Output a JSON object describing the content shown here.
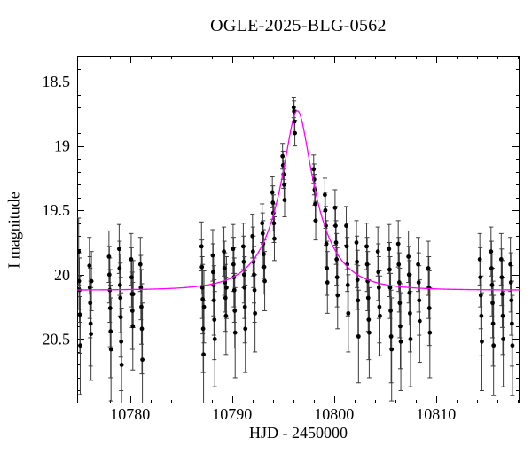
{
  "title": "OGLE-2025-BLG-0562",
  "chart_data": {
    "type": "scatter",
    "title": "OGLE-2025-BLG-0562",
    "xlabel": "HJD - 2450000",
    "ylabel": "I magnitude",
    "xlim": [
      10774.8,
      10818.2
    ],
    "ylim": [
      18.3,
      21.0
    ],
    "y_axis_inverted_magnitude": true,
    "grid": false,
    "legend": "none",
    "x_major_ticks": [
      10780,
      10790,
      10800,
      10810
    ],
    "x_major_labels": [
      "10780",
      "10790",
      "10800",
      "10810"
    ],
    "x_minor_step": 2,
    "y_major_ticks": [
      18.5,
      19,
      19.5,
      20,
      20.5
    ],
    "y_major_labels": [
      "18.5",
      "19",
      "19.5",
      "20",
      "20.5"
    ],
    "y_minor_step": 0.1,
    "colors": {
      "model_curve": "#ff00ff",
      "data_point": "#000000",
      "error_bar": "#3d3d3d",
      "axis": "#000000",
      "background": "#ffffff"
    },
    "model": {
      "name": "paczynski-microlensing",
      "t0": 10796.4,
      "tE": 3.8,
      "u0": 0.285,
      "I0": 20.12,
      "peak_mag": 18.72
    },
    "points_format": [
      "hjd_minus_2450000",
      "I_mag",
      "mag_error"
    ],
    "points": [
      [
        10774.95,
        19.82,
        0.26
      ],
      [
        10774.98,
        20.05,
        0.22
      ],
      [
        10775.02,
        20.12,
        0.25
      ],
      [
        10775.06,
        20.31,
        0.3
      ],
      [
        10775.1,
        20.55,
        0.38
      ],
      [
        10776.0,
        19.93,
        0.22
      ],
      [
        10776.04,
        20.1,
        0.24
      ],
      [
        10776.08,
        20.22,
        0.27
      ],
      [
        10776.12,
        20.38,
        0.33
      ],
      [
        10776.16,
        20.46,
        0.36
      ],
      [
        10776.2,
        20.05,
        0.23
      ],
      [
        10777.92,
        19.86,
        0.2
      ],
      [
        10777.96,
        20.0,
        0.22
      ],
      [
        10778.0,
        20.12,
        0.25
      ],
      [
        10778.04,
        20.26,
        0.3
      ],
      [
        10778.08,
        20.44,
        0.36
      ],
      [
        10778.12,
        20.58,
        0.4
      ],
      [
        10778.92,
        19.8,
        0.19
      ],
      [
        10778.96,
        19.95,
        0.21
      ],
      [
        10779.0,
        20.08,
        0.24
      ],
      [
        10779.04,
        20.18,
        0.27
      ],
      [
        10779.08,
        20.33,
        0.31
      ],
      [
        10779.12,
        20.52,
        0.38
      ],
      [
        10779.16,
        20.7,
        0.44
      ],
      [
        10780.1,
        19.88,
        0.2
      ],
      [
        10780.14,
        20.02,
        0.23
      ],
      [
        10780.18,
        20.15,
        0.26
      ],
      [
        10780.22,
        20.28,
        0.3
      ],
      [
        10780.26,
        20.4,
        0.34
      ],
      [
        10780.3,
        20.15,
        0.26
      ],
      [
        10781.0,
        19.92,
        0.21
      ],
      [
        10781.05,
        20.1,
        0.25
      ],
      [
        10781.1,
        20.25,
        0.29
      ],
      [
        10781.15,
        20.42,
        0.35
      ],
      [
        10781.2,
        20.66,
        0.44
      ],
      [
        10787.0,
        19.78,
        0.19
      ],
      [
        10787.04,
        19.94,
        0.21
      ],
      [
        10787.08,
        20.1,
        0.24
      ],
      [
        10787.12,
        20.19,
        0.27
      ],
      [
        10787.16,
        20.42,
        0.34
      ],
      [
        10787.2,
        20.62,
        0.42
      ],
      [
        10787.24,
        20.25,
        0.28
      ],
      [
        10788.1,
        19.85,
        0.2
      ],
      [
        10788.14,
        19.98,
        0.22
      ],
      [
        10788.18,
        20.08,
        0.24
      ],
      [
        10788.22,
        20.2,
        0.27
      ],
      [
        10788.26,
        20.35,
        0.31
      ],
      [
        10788.3,
        20.5,
        0.37
      ],
      [
        10789.2,
        19.82,
        0.19
      ],
      [
        10789.25,
        19.95,
        0.21
      ],
      [
        10789.3,
        20.06,
        0.23
      ],
      [
        10789.35,
        20.18,
        0.26
      ],
      [
        10789.4,
        20.32,
        0.3
      ],
      [
        10789.45,
        20.1,
        0.24
      ],
      [
        10790.1,
        19.8,
        0.19
      ],
      [
        10790.14,
        19.92,
        0.21
      ],
      [
        10790.18,
        20.02,
        0.23
      ],
      [
        10790.22,
        20.12,
        0.25
      ],
      [
        10790.26,
        20.28,
        0.29
      ],
      [
        10790.3,
        20.45,
        0.35
      ],
      [
        10791.1,
        19.78,
        0.18
      ],
      [
        10791.14,
        19.9,
        0.2
      ],
      [
        10791.18,
        20.0,
        0.22
      ],
      [
        10791.22,
        20.1,
        0.24
      ],
      [
        10791.26,
        20.25,
        0.28
      ],
      [
        10791.3,
        20.42,
        0.34
      ],
      [
        10792.0,
        19.7,
        0.17
      ],
      [
        10792.05,
        19.82,
        0.19
      ],
      [
        10792.1,
        19.9,
        0.2
      ],
      [
        10792.15,
        20.0,
        0.22
      ],
      [
        10792.2,
        20.12,
        0.25
      ],
      [
        10792.25,
        20.3,
        0.3
      ],
      [
        10792.95,
        19.6,
        0.15
      ],
      [
        10793.0,
        19.68,
        0.16
      ],
      [
        10793.05,
        19.76,
        0.18
      ],
      [
        10793.1,
        19.84,
        0.19
      ],
      [
        10793.15,
        19.94,
        0.21
      ],
      [
        10793.2,
        20.05,
        0.23
      ],
      [
        10793.95,
        19.36,
        0.12
      ],
      [
        10794.0,
        19.44,
        0.13
      ],
      [
        10794.05,
        19.52,
        0.14
      ],
      [
        10794.1,
        19.6,
        0.15
      ],
      [
        10794.15,
        19.72,
        0.17
      ],
      [
        10794.95,
        19.08,
        0.1
      ],
      [
        10795.0,
        19.15,
        0.11
      ],
      [
        10795.05,
        19.22,
        0.11
      ],
      [
        10795.1,
        19.3,
        0.12
      ],
      [
        10795.15,
        19.42,
        0.13
      ],
      [
        10796.05,
        18.7,
        0.08
      ],
      [
        10796.08,
        18.73,
        0.08
      ],
      [
        10796.12,
        18.81,
        0.09
      ],
      [
        10796.16,
        18.9,
        0.1
      ],
      [
        10798.0,
        19.18,
        0.11
      ],
      [
        10798.05,
        19.26,
        0.12
      ],
      [
        10798.1,
        19.34,
        0.12
      ],
      [
        10798.15,
        19.45,
        0.13
      ],
      [
        10798.2,
        19.58,
        0.15
      ],
      [
        10799.1,
        19.38,
        0.13
      ],
      [
        10799.15,
        19.5,
        0.14
      ],
      [
        10799.2,
        19.62,
        0.15
      ],
      [
        10799.25,
        19.76,
        0.18
      ],
      [
        10799.3,
        19.95,
        0.21
      ],
      [
        10799.35,
        20.06,
        0.24
      ],
      [
        10800.1,
        19.48,
        0.14
      ],
      [
        10800.15,
        19.62,
        0.15
      ],
      [
        10800.2,
        19.75,
        0.17
      ],
      [
        10800.25,
        19.88,
        0.2
      ],
      [
        10800.3,
        20.02,
        0.23
      ],
      [
        10800.35,
        20.16,
        0.26
      ],
      [
        10801.2,
        19.62,
        0.15
      ],
      [
        10801.25,
        19.78,
        0.18
      ],
      [
        10801.3,
        19.92,
        0.21
      ],
      [
        10801.35,
        20.08,
        0.24
      ],
      [
        10801.4,
        20.3,
        0.3
      ],
      [
        10802.2,
        19.75,
        0.17
      ],
      [
        10802.25,
        19.9,
        0.2
      ],
      [
        10802.3,
        20.04,
        0.23
      ],
      [
        10802.35,
        20.2,
        0.27
      ],
      [
        10802.4,
        20.48,
        0.36
      ],
      [
        10803.2,
        19.78,
        0.18
      ],
      [
        10803.25,
        19.92,
        0.21
      ],
      [
        10803.3,
        20.05,
        0.23
      ],
      [
        10803.35,
        20.18,
        0.26
      ],
      [
        10803.4,
        20.35,
        0.31
      ],
      [
        10803.45,
        20.45,
        0.35
      ],
      [
        10804.3,
        19.82,
        0.19
      ],
      [
        10804.35,
        19.98,
        0.22
      ],
      [
        10804.4,
        20.1,
        0.24
      ],
      [
        10804.45,
        20.25,
        0.28
      ],
      [
        10804.5,
        20.32,
        0.31
      ],
      [
        10805.4,
        19.8,
        0.19
      ],
      [
        10805.45,
        19.96,
        0.21
      ],
      [
        10805.5,
        20.1,
        0.24
      ],
      [
        10805.55,
        20.28,
        0.29
      ],
      [
        10805.6,
        20.48,
        0.36
      ],
      [
        10805.65,
        20.58,
        0.4
      ],
      [
        10806.3,
        19.76,
        0.18
      ],
      [
        10806.35,
        19.92,
        0.21
      ],
      [
        10806.4,
        20.06,
        0.23
      ],
      [
        10806.45,
        20.22,
        0.27
      ],
      [
        10806.5,
        20.4,
        0.33
      ],
      [
        10806.55,
        20.52,
        0.38
      ],
      [
        10807.3,
        19.86,
        0.2
      ],
      [
        10807.35,
        20.0,
        0.22
      ],
      [
        10807.4,
        20.14,
        0.25
      ],
      [
        10807.45,
        20.3,
        0.3
      ],
      [
        10807.5,
        20.5,
        0.37
      ],
      [
        10808.25,
        19.92,
        0.21
      ],
      [
        10808.3,
        20.06,
        0.23
      ],
      [
        10808.35,
        20.2,
        0.27
      ],
      [
        10808.4,
        20.36,
        0.32
      ],
      [
        10809.25,
        19.95,
        0.21
      ],
      [
        10809.3,
        20.1,
        0.24
      ],
      [
        10809.35,
        20.26,
        0.29
      ],
      [
        10809.4,
        20.45,
        0.35
      ],
      [
        10814.3,
        19.88,
        0.2
      ],
      [
        10814.35,
        20.02,
        0.23
      ],
      [
        10814.4,
        20.16,
        0.26
      ],
      [
        10814.45,
        20.32,
        0.31
      ],
      [
        10814.5,
        20.52,
        0.38
      ],
      [
        10815.4,
        19.82,
        0.19
      ],
      [
        10815.45,
        19.95,
        0.21
      ],
      [
        10815.5,
        20.08,
        0.24
      ],
      [
        10815.55,
        20.22,
        0.27
      ],
      [
        10815.6,
        20.38,
        0.33
      ],
      [
        10815.65,
        20.55,
        0.39
      ],
      [
        10816.4,
        19.88,
        0.2
      ],
      [
        10816.45,
        20.02,
        0.22
      ],
      [
        10816.5,
        20.15,
        0.26
      ],
      [
        10816.55,
        20.32,
        0.3
      ],
      [
        10816.6,
        20.5,
        0.37
      ],
      [
        10817.3,
        19.92,
        0.21
      ],
      [
        10817.35,
        20.06,
        0.23
      ],
      [
        10817.4,
        20.2,
        0.27
      ],
      [
        10817.45,
        20.38,
        0.33
      ],
      [
        10817.5,
        20.55,
        0.39
      ]
    ]
  }
}
